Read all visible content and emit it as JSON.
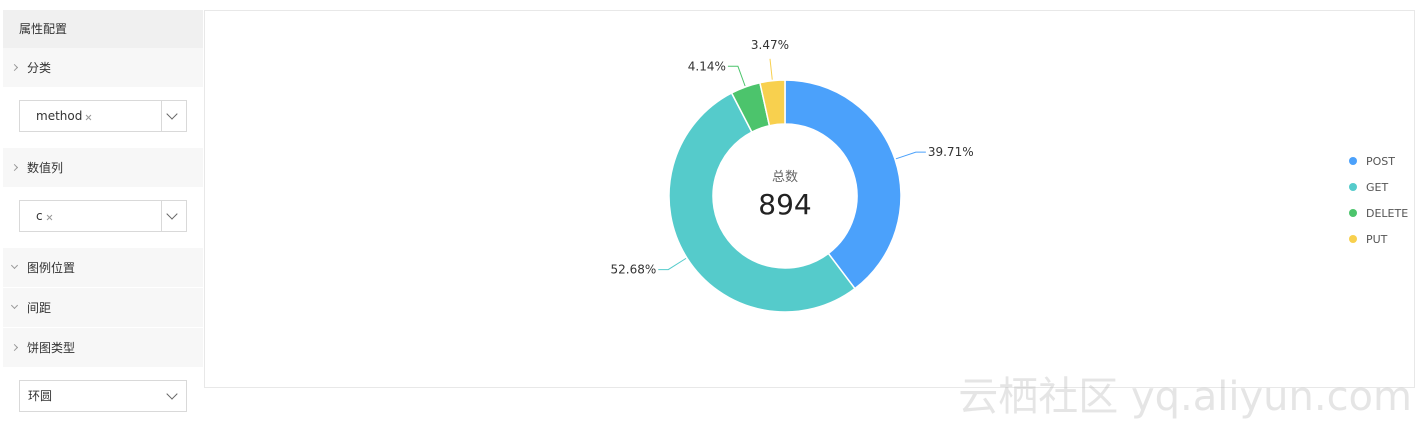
{
  "sidebar": {
    "title": "属性配置",
    "items": [
      {
        "label": "分类",
        "tag": "method"
      },
      {
        "label": "数值列",
        "tag": "c"
      },
      {
        "label": "图例位置"
      },
      {
        "label": "间距"
      },
      {
        "label": "饼图类型",
        "select": "环圆"
      }
    ]
  },
  "chart_data": {
    "type": "pie",
    "donut": true,
    "center_label": "总数",
    "center_value": 894,
    "categories": [
      "POST",
      "GET",
      "DELETE",
      "PUT"
    ],
    "values": [
      39.71,
      52.68,
      4.14,
      3.47
    ],
    "value_labels": [
      "39.71%",
      "52.68%",
      "4.14%",
      "3.47%"
    ],
    "colors": [
      "#4ba1fb",
      "#55cbcb",
      "#4cc46c",
      "#f8d04e"
    ],
    "legend": "right"
  },
  "watermark": "云栖社区 yq.aliyun.com"
}
